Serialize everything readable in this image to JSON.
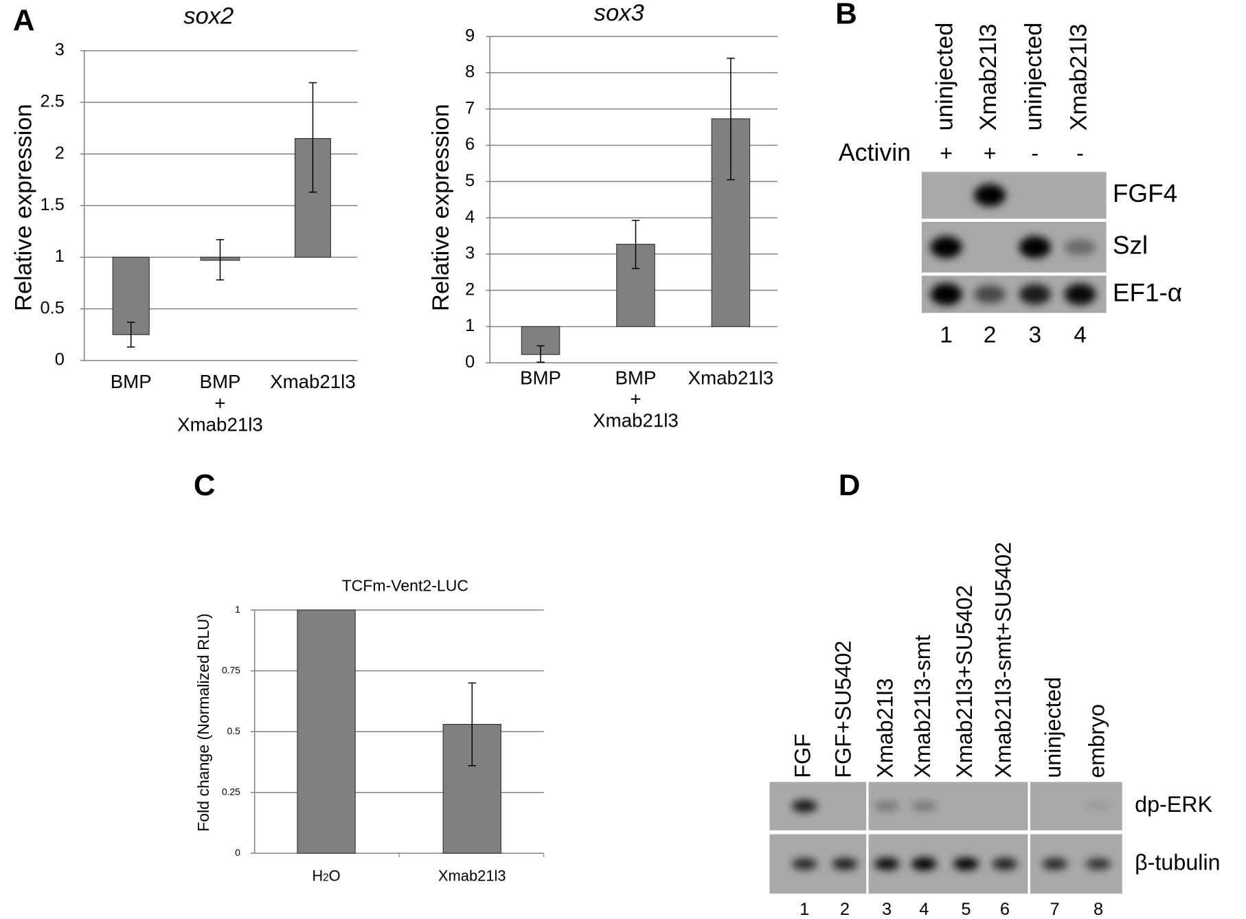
{
  "panel_labels": {
    "a": "A",
    "b": "B",
    "c": "C",
    "d": "D"
  },
  "chart_data": [
    {
      "id": "sox2",
      "type": "bar",
      "title": "sox2",
      "ylabel": "Relative expression",
      "xlabel": "",
      "categories": [
        [
          "BMP"
        ],
        [
          "BMP",
          "+",
          "Xmab21l3"
        ],
        [
          "Xmab21l3"
        ]
      ],
      "baseline": 1,
      "values": [
        0.25,
        0.97,
        2.15
      ],
      "error_low": [
        0.13,
        0.78,
        1.63
      ],
      "error_high": [
        0.37,
        1.17,
        2.69
      ],
      "ylim": [
        0,
        3
      ],
      "yticks": [
        "0",
        "0.5",
        "1",
        "1.5",
        "2",
        "2.5",
        "3"
      ],
      "grid": true,
      "bar_color": "#808080"
    },
    {
      "id": "sox3",
      "type": "bar",
      "title": "sox3",
      "ylabel": "Relative expression",
      "xlabel": "",
      "categories": [
        [
          "BMP"
        ],
        [
          "BMP",
          "+",
          "Xmab21l3"
        ],
        [
          "Xmab21l3"
        ]
      ],
      "baseline": 1,
      "values": [
        0.23,
        3.27,
        6.73
      ],
      "error_low": [
        0.02,
        2.6,
        5.05
      ],
      "error_high": [
        0.47,
        3.93,
        8.4
      ],
      "ylim": [
        0,
        9
      ],
      "yticks": [
        "0",
        "1",
        "2",
        "3",
        "4",
        "5",
        "6",
        "7",
        "8",
        "9"
      ],
      "grid": true,
      "bar_color": "#808080"
    },
    {
      "id": "luc",
      "type": "bar",
      "title": "TCFm-Vent2-LUC",
      "ylabel": "Fold change (Normalized RLU)",
      "xlabel": "",
      "categories": [
        [
          "H2O"
        ],
        [
          "Xmab21l3"
        ]
      ],
      "baseline": 0,
      "values": [
        1.0,
        0.53
      ],
      "error_low": [
        null,
        0.36
      ],
      "error_high": [
        null,
        0.7
      ],
      "ylim": [
        0,
        1
      ],
      "yticks": [
        "0",
        "0.25",
        "0.5",
        "0.75",
        "1"
      ],
      "grid": true,
      "bar_color": "#808080"
    }
  ],
  "blot_b": {
    "lanes": [
      "uninjected",
      "Xmab21l3",
      "uninjected",
      "Xmab21l3"
    ],
    "activin_label": "Activin",
    "activin": [
      "+",
      "+",
      "-",
      "-"
    ],
    "lane_numbers": [
      "1",
      "2",
      "3",
      "4"
    ],
    "rows": [
      {
        "label": "FGF4",
        "band_intensity": [
          0,
          1,
          0,
          0
        ]
      },
      {
        "label": "Szl",
        "band_intensity": [
          0.95,
          0,
          1,
          0.35
        ]
      },
      {
        "label": "EF1-α",
        "band_intensity": [
          1,
          0.55,
          0.8,
          0.9
        ]
      }
    ]
  },
  "blot_d": {
    "lanes": [
      "FGF",
      "FGF+SU5402",
      "Xmab21l3",
      "Xmab21l3-smt",
      "Xmab21l3+SU5402",
      "Xmab21l3-smt+SU5402",
      "uninjected",
      "embryo"
    ],
    "lane_numbers": [
      "1",
      "2",
      "3",
      "4",
      "5",
      "6",
      "7",
      "8"
    ],
    "rows": [
      {
        "label": "dp-ERK",
        "band_intensity": [
          0.85,
          0,
          0.3,
          0.3,
          0,
          0,
          0,
          0.1
        ]
      },
      {
        "label": "β-tubulin",
        "band_intensity": [
          0.75,
          0.8,
          0.9,
          1,
          0.95,
          0.8,
          0.75,
          0.7
        ]
      }
    ]
  }
}
